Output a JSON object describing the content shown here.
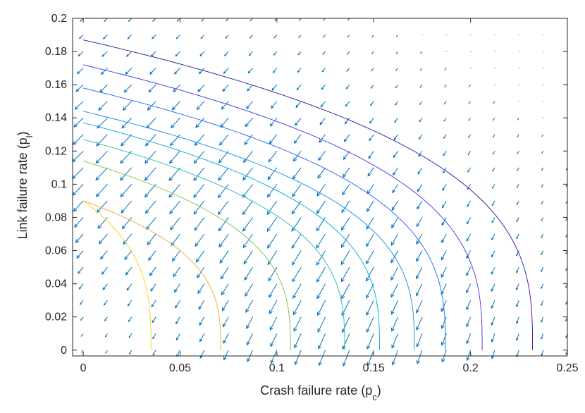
{
  "chart_data": {
    "type": "quiver-contour",
    "xlabel": "Crash failure rate (p",
    "xlabel_sub": "c",
    "xlabel_end": ")",
    "ylabel": "Link failure rate (p",
    "ylabel_sub": "l",
    "ylabel_end": ")",
    "xlim": [
      -0.0055,
      0.25
    ],
    "ylim": [
      -0.0035,
      0.2
    ],
    "xticks": [
      0,
      0.05,
      0.1,
      0.15,
      0.2,
      0.25
    ],
    "xtick_labels": [
      "0",
      "0.05",
      "0.1",
      "0.15",
      "0.2",
      "0.25"
    ],
    "yticks": [
      0,
      0.02,
      0.04,
      0.06,
      0.08,
      0.1,
      0.12,
      0.14,
      0.16,
      0.18,
      0.2
    ],
    "ytick_labels": [
      "0",
      "0.02",
      "0.04",
      "0.06",
      "0.08",
      "0.1",
      "0.12",
      "0.14",
      "0.16",
      "0.18",
      "0.2"
    ],
    "grid": false,
    "arrow_color": "#0072BD",
    "contours": [
      {
        "color": "#3e26a8",
        "pl0": 0.187,
        "pc0": 0.232
      },
      {
        "color": "#4a44f0",
        "pl0": 0.172,
        "pc0": 0.206
      },
      {
        "color": "#3a6cf8",
        "pl0": 0.158,
        "pc0": 0.187
      },
      {
        "color": "#2892e8",
        "pl0": 0.144,
        "pc0": 0.171
      },
      {
        "color": "#12b0d8",
        "pl0": 0.137,
        "pc0": 0.153
      },
      {
        "color": "#2ac3ad",
        "pl0": 0.127,
        "pc0": 0.135
      },
      {
        "color": "#86c84a",
        "pl0": 0.114,
        "pc0": 0.107
      },
      {
        "color": "#e6b63c",
        "pl0": 0.09,
        "pc0": 0.071
      },
      {
        "color": "#f4d81f",
        "pl0": 0.09,
        "pc0": 0.035
      }
    ],
    "quiver": {
      "x_start": 0,
      "x_step": 0.0125,
      "x_count": 21,
      "y_start": 0,
      "y_step": 0.01,
      "y_count": 21
    }
  }
}
